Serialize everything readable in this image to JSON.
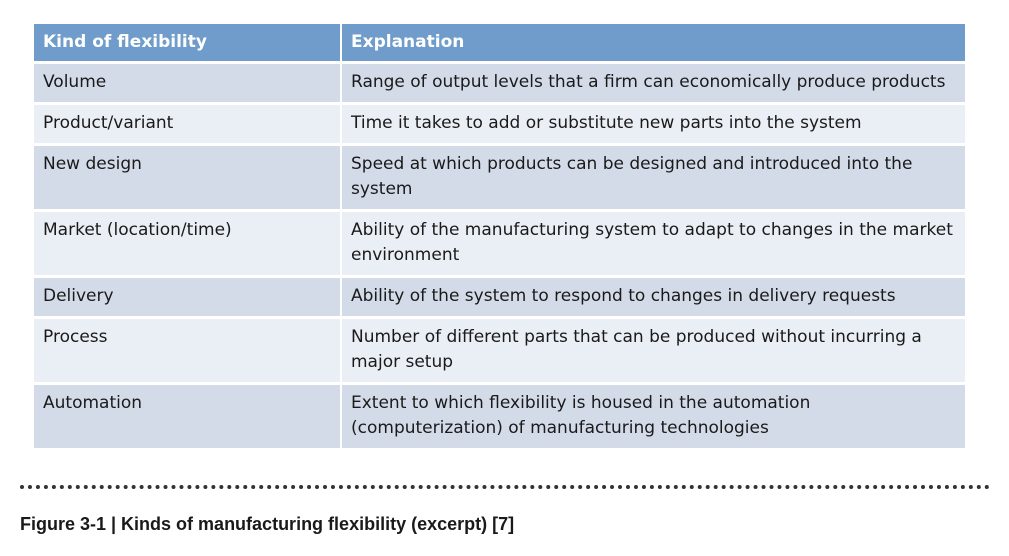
{
  "table": {
    "headers": [
      "Kind of flexibility",
      "Explanation"
    ],
    "rows": [
      {
        "kind": "Volume",
        "explanation": "Range of output levels that a firm can economically produce products"
      },
      {
        "kind": "Product/variant",
        "explanation": "Time it takes to add or substitute new parts into the system"
      },
      {
        "kind": "New design",
        "explanation": "Speed at which products can be designed and introduced into the system"
      },
      {
        "kind": "Market (location/time)",
        "explanation": "Ability of the manufacturing system to adapt to changes in the market environment"
      },
      {
        "kind": "Delivery",
        "explanation": "Ability of the system to respond to changes in delivery requests"
      },
      {
        "kind": "Process",
        "explanation": "Number of different parts that can be produced without incurring a major setup"
      },
      {
        "kind": "Automation",
        "explanation": "Extent to which flexibility is housed in the automation (computerization) of manufacturing technologies"
      }
    ]
  },
  "caption": "Figure 3-1 | Kinds of manufacturing flexibility (excerpt) [7]"
}
